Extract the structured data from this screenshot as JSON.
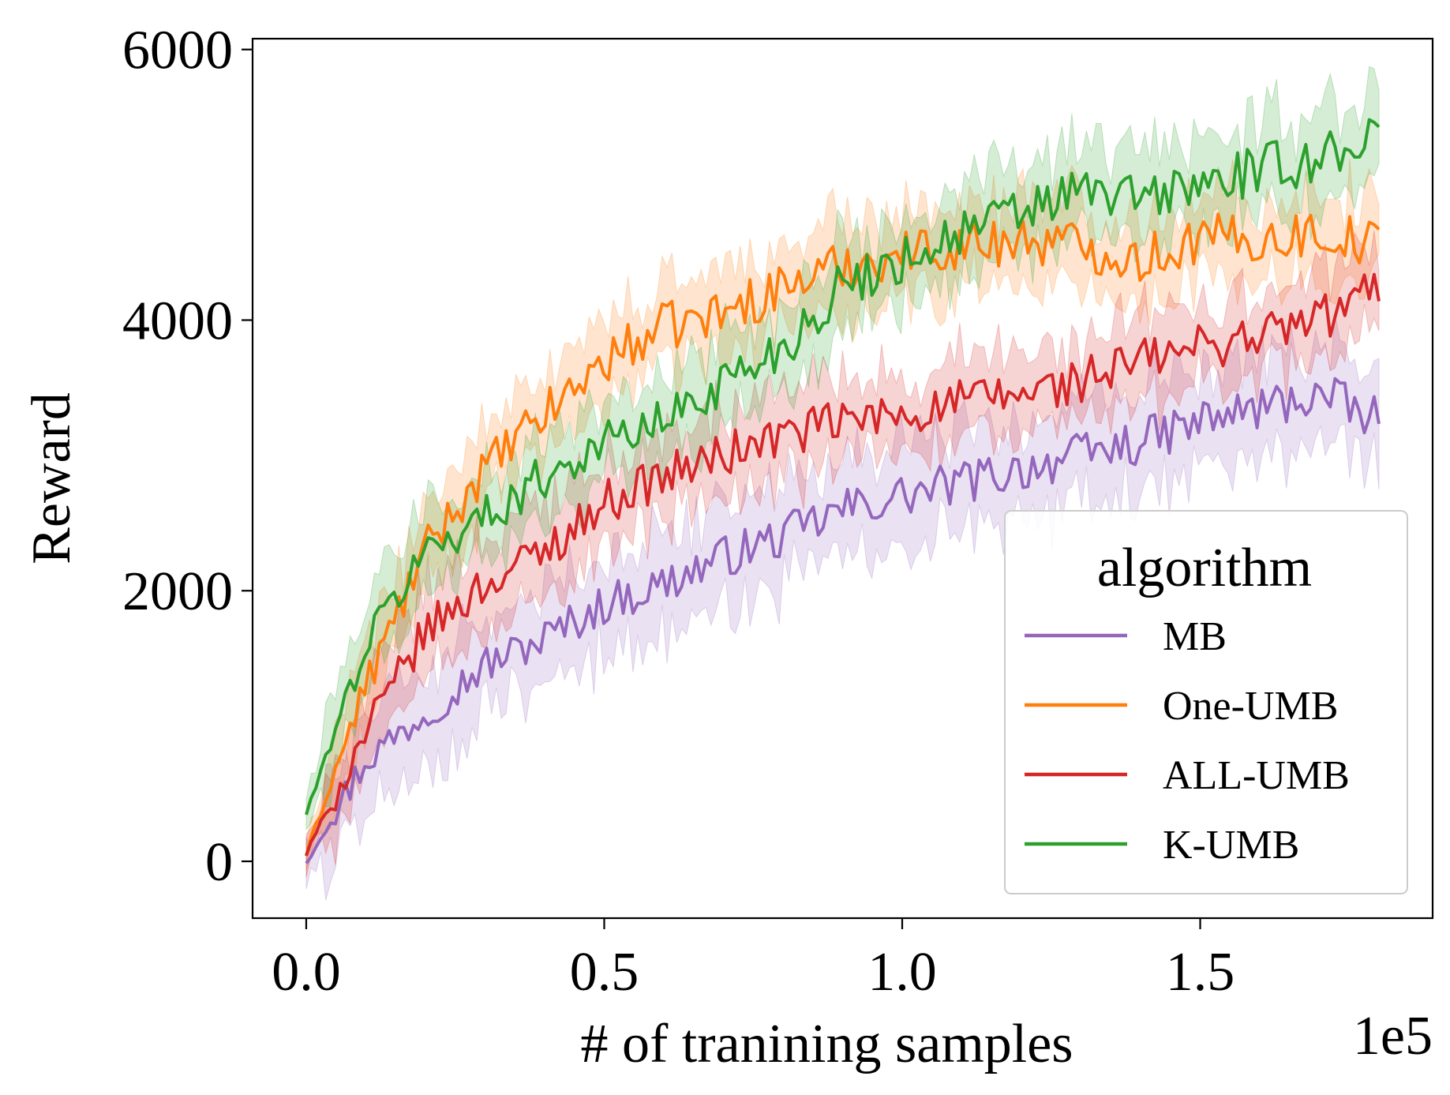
{
  "chart_data": {
    "type": "line",
    "title": "",
    "xlabel": "# of tranining samples",
    "ylabel": "Reward",
    "x_offset_label": "1e5",
    "x_scale": 100000,
    "xlim": [
      -0.09,
      1.89
    ],
    "ylim": [
      -420,
      6080
    ],
    "xticks": [
      0.0,
      0.5,
      1.0,
      1.5
    ],
    "xtick_labels": [
      "0.0",
      "0.5",
      "1.0",
      "1.5"
    ],
    "yticks": [
      0,
      2000,
      4000,
      6000
    ],
    "ytick_labels": [
      "0",
      "2000",
      "4000",
      "6000"
    ],
    "grid": false,
    "legend": {
      "title": "algorithm",
      "position": "lower right"
    },
    "x": [
      0.0,
      0.1,
      0.2,
      0.3,
      0.4,
      0.5,
      0.6,
      0.7,
      0.8,
      0.9,
      1.0,
      1.1,
      1.2,
      1.3,
      1.4,
      1.5,
      1.6,
      1.7,
      1.8
    ],
    "series": [
      {
        "name": "MB",
        "color": "#9467bd",
        "values": [
          0,
          750,
          1100,
          1450,
          1650,
          1900,
          2050,
          2250,
          2400,
          2600,
          2700,
          2800,
          2900,
          3000,
          3100,
          3250,
          3350,
          3450,
          3250
        ],
        "band": 350
      },
      {
        "name": "One-UMB",
        "color": "#ff7f0e",
        "values": [
          50,
          1300,
          2300,
          2900,
          3300,
          3700,
          3950,
          4050,
          4250,
          4400,
          4500,
          4550,
          4600,
          4550,
          4450,
          4600,
          4600,
          4650,
          4550
        ],
        "band": 300
      },
      {
        "name": "ALL-UMB",
        "color": "#d62728",
        "values": [
          50,
          950,
          1700,
          2050,
          2300,
          2650,
          2850,
          3000,
          3150,
          3250,
          3300,
          3400,
          3450,
          3550,
          3700,
          3800,
          3900,
          4000,
          4250
        ],
        "band": 300
      },
      {
        "name": "K-UMB",
        "color": "#2ca02c",
        "values": [
          350,
          1600,
          2300,
          2550,
          2850,
          3100,
          3250,
          3550,
          3800,
          4250,
          4450,
          4650,
          4800,
          4950,
          4900,
          5000,
          5100,
          5200,
          5400
        ],
        "band": 320
      }
    ]
  }
}
